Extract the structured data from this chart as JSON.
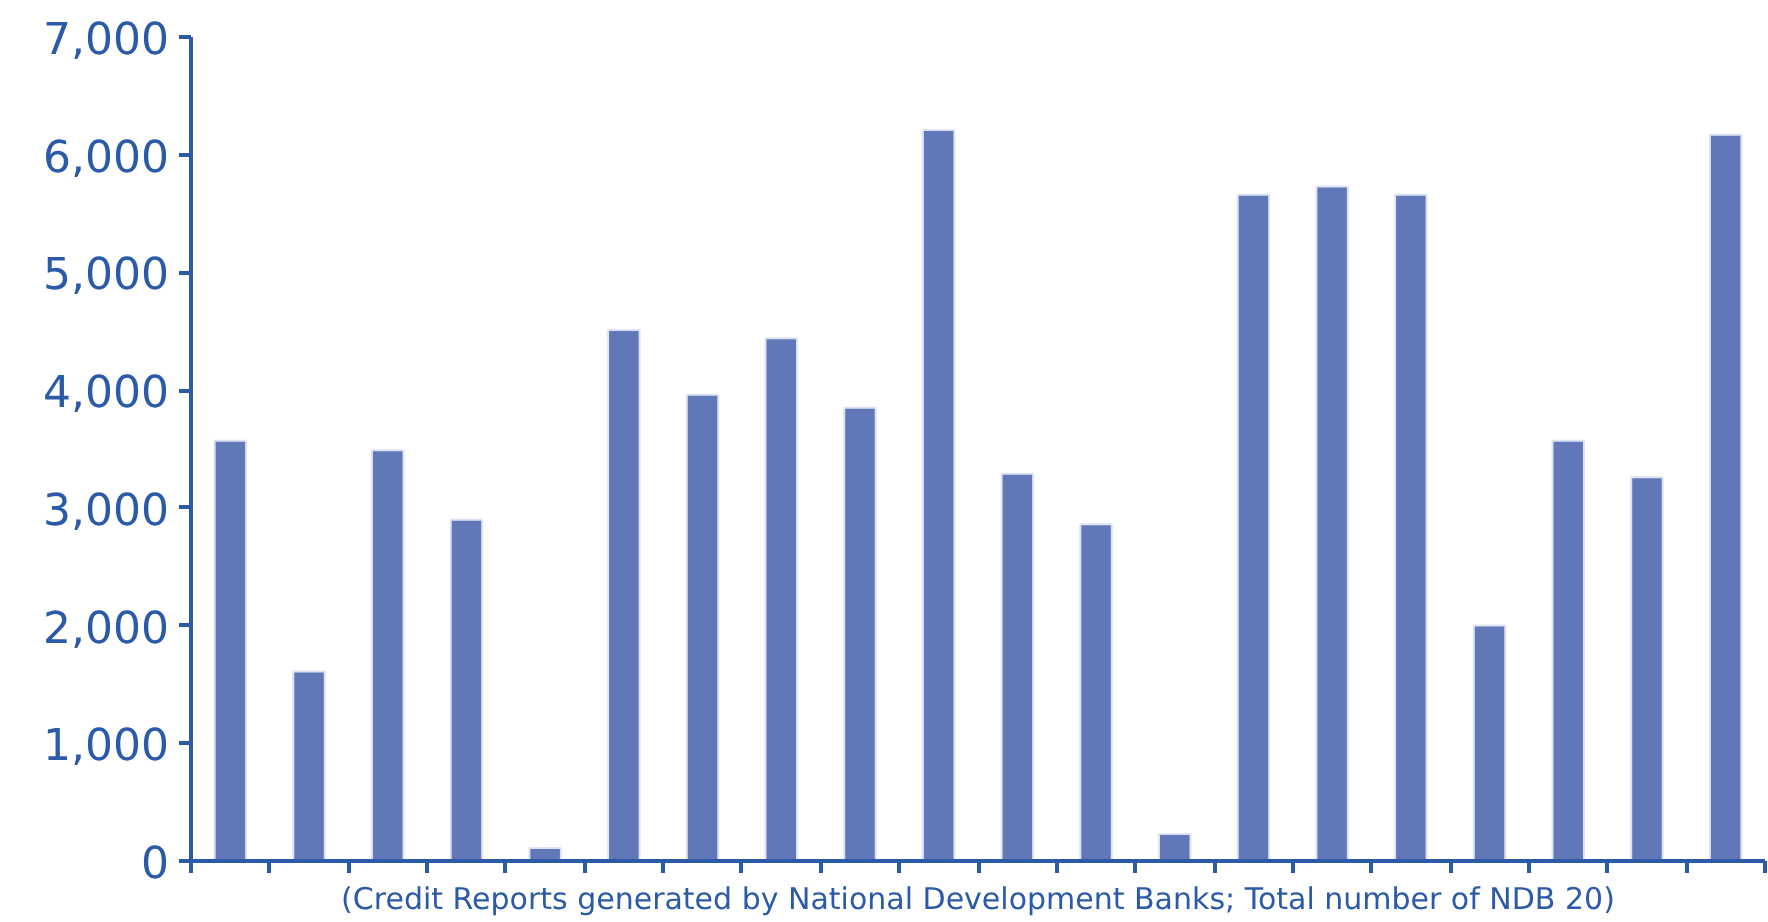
{
  "chart_data": {
    "type": "bar",
    "xlabel": "(Credit Reports generated by National Development Banks; Total number of NDB 20)",
    "categories": [
      null,
      null,
      null,
      null,
      null,
      null,
      null,
      null,
      null,
      null,
      null,
      null,
      null,
      null,
      null,
      null,
      null,
      null,
      null,
      null
    ],
    "values": [
      3570,
      1610,
      3490,
      2900,
      110,
      4510,
      3960,
      4440,
      3850,
      6210,
      3290,
      2860,
      230,
      5660,
      5730,
      5660,
      2000,
      3570,
      3260,
      6170
    ],
    "color": "#6078b8",
    "ylim": [
      0,
      7000
    ],
    "yticks": [
      {
        "value": 0,
        "label": "0"
      },
      {
        "value": 1000,
        "label": "1,000"
      },
      {
        "value": 2000,
        "label": "2,000"
      },
      {
        "value": 3000,
        "label": "3,000"
      },
      {
        "value": 4000,
        "label": "4,000"
      },
      {
        "value": 5000,
        "label": "5,000"
      },
      {
        "value": 6000,
        "label": "6,000"
      },
      {
        "value": 7000,
        "label": "7,000"
      }
    ],
    "grid": false
  }
}
